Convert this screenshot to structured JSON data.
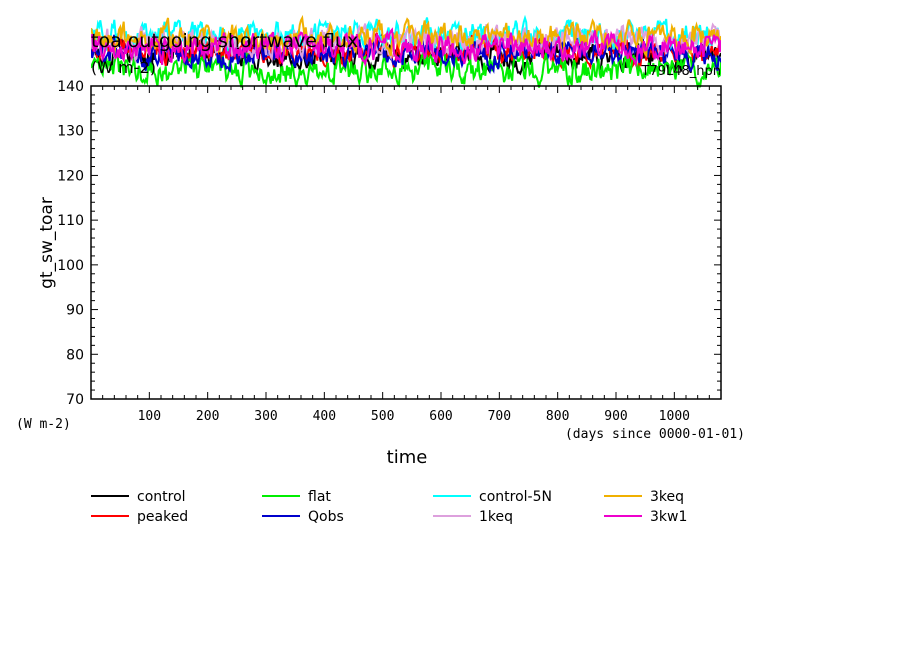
{
  "chart_data": {
    "type": "line",
    "title": "toa outgoing shortwave flux",
    "units_top": "(W m-2)",
    "run_label": "T79L48_hpn",
    "xlabel": "time",
    "x_units": "(days since 0000-01-01)",
    "ylabel": "gt_sw_toar",
    "y_units": "(W m-2)",
    "xlim": [
      0,
      1080
    ],
    "ylim": [
      70,
      140
    ],
    "x_ticks": [
      100,
      200,
      300,
      400,
      500,
      600,
      700,
      800,
      900,
      1000
    ],
    "y_ticks": [
      70,
      80,
      90,
      100,
      110,
      120,
      130,
      140
    ],
    "grid": false,
    "legend_position": "bottom",
    "series": [
      {
        "name": "control",
        "color": "#000000",
        "mean": 147.0,
        "amp": 3.0,
        "seed": 1
      },
      {
        "name": "peaked",
        "color": "#ff0000",
        "mean": 148.0,
        "amp": 3.0,
        "seed": 2
      },
      {
        "name": "flat",
        "color": "#00ee00",
        "mean": 143.5,
        "amp": 3.2,
        "seed": 3
      },
      {
        "name": "Qobs",
        "color": "#0000cc",
        "mean": 147.5,
        "amp": 3.0,
        "seed": 4
      },
      {
        "name": "control-5N",
        "color": "#00ffff",
        "mean": 151.5,
        "amp": 3.0,
        "seed": 5
      },
      {
        "name": "1keq",
        "color": "#dda0dd",
        "mean": 150.0,
        "amp": 3.0,
        "seed": 6
      },
      {
        "name": "3keq",
        "color": "#f0b000",
        "mean": 151.0,
        "amp": 3.0,
        "seed": 7
      },
      {
        "name": "3kw1",
        "color": "#ee00cc",
        "mean": 148.5,
        "amp": 3.0,
        "seed": 8
      }
    ]
  }
}
